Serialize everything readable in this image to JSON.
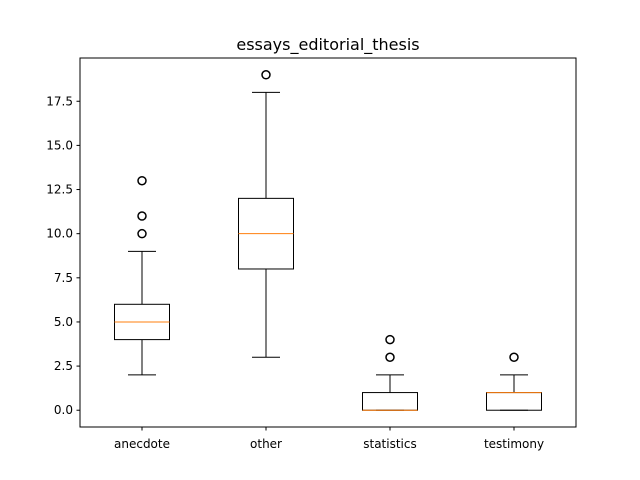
{
  "chart_data": {
    "type": "boxplot",
    "title": "essays_editorial_thesis",
    "xlabel": "",
    "ylabel": "",
    "categories": [
      "anecdote",
      "other",
      "statistics",
      "testimony"
    ],
    "ylim": [
      -0.95,
      19.95
    ],
    "yticks": [
      0.0,
      2.5,
      5.0,
      7.5,
      10.0,
      12.5,
      15.0,
      17.5
    ],
    "ytick_labels": [
      "0.0",
      "2.5",
      "5.0",
      "7.5",
      "10.0",
      "12.5",
      "15.0",
      "17.5"
    ],
    "grid": false,
    "boxes": [
      {
        "name": "anecdote",
        "whisker_low": 2,
        "q1": 4,
        "median": 5,
        "q3": 6,
        "whisker_high": 9,
        "outliers": [
          10,
          11,
          13
        ]
      },
      {
        "name": "other",
        "whisker_low": 3,
        "q1": 8,
        "median": 10,
        "q3": 12,
        "whisker_high": 18,
        "outliers": [
          19
        ]
      },
      {
        "name": "statistics",
        "whisker_low": 0,
        "q1": 0,
        "median": 0,
        "q3": 1,
        "whisker_high": 2,
        "outliers": [
          3,
          4
        ]
      },
      {
        "name": "testimony",
        "whisker_low": 0,
        "q1": 0,
        "median": 1,
        "q3": 1,
        "whisker_high": 2,
        "outliers": [
          3
        ]
      }
    ],
    "colors": {
      "box": "#000000",
      "median": "#ff7f0e",
      "flier": "#000000"
    }
  }
}
